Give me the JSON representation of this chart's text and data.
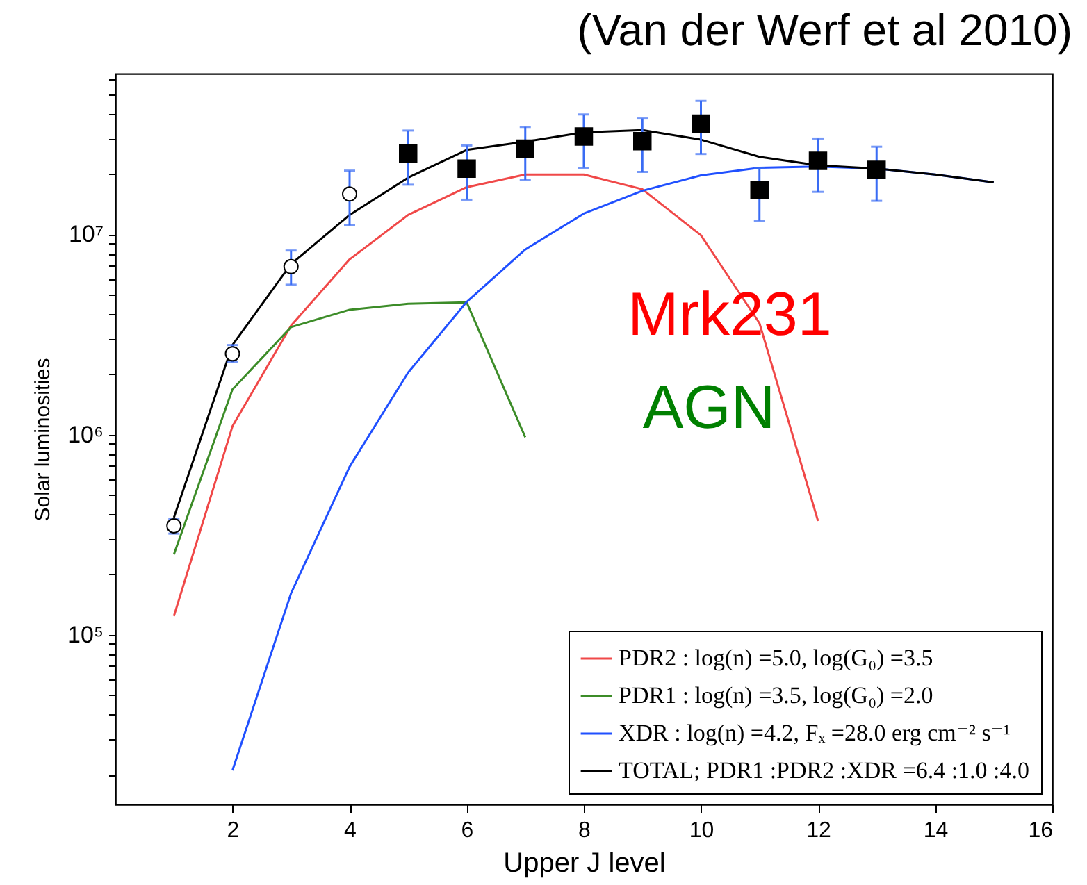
{
  "chart_data": {
    "type": "line",
    "title": "(Van der Werf et al 2010)",
    "xlabel": "Upper J level",
    "ylabel": "Solar luminosities",
    "annotations": [
      "Mrk231",
      "AGN"
    ],
    "x": [
      1,
      2,
      3,
      4,
      5,
      6,
      7,
      8,
      9,
      10,
      11,
      12,
      13,
      14,
      15
    ],
    "series": [
      {
        "name": "PDR2 : log(n) =5.0, log(G₀) =3.5",
        "color": "#f04848",
        "values": [
          124000,
          1100000,
          3500000,
          7500000,
          12500000,
          17200000,
          19900000,
          19900000,
          16800000,
          9900000,
          3600000,
          370000,
          null,
          null,
          null
        ]
      },
      {
        "name": "PDR1 : log(n) =3.5, log(G₀) =2.0",
        "color": "#3c8c28",
        "values": [
          252000,
          1680000,
          3440000,
          4200000,
          4500000,
          4570000,
          970000,
          null,
          null,
          null,
          null,
          null,
          null,
          null,
          null
        ]
      },
      {
        "name": "XDR : log(n) =4.2, Fₓ =28.0 erg cm⁻² s⁻¹",
        "color": "#2050ff",
        "values": [
          null,
          21000,
          161000,
          690000,
          2040000,
          4600000,
          8400000,
          12700000,
          16500000,
          19700000,
          21500000,
          21800000,
          21300000,
          19900000,
          18200000
        ]
      },
      {
        "name": "TOTAL; PDR1 :PDR2 :XDR =6.4 :1.0 :4.0",
        "color": "#000000",
        "values": [
          385000,
          2800000,
          7100000,
          12500000,
          19200000,
          26400000,
          29000000,
          32300000,
          33200000,
          29700000,
          24400000,
          22100000,
          21300000,
          19900000,
          18200000
        ]
      },
      {
        "type": "scatter",
        "marker": "circle",
        "color": "#000000",
        "x": [
          1,
          2,
          3,
          4
        ],
        "values": [
          350000,
          2530000,
          6900000,
          15900000
        ],
        "errors": [
          [
            320000,
            380000
          ],
          [
            2300000,
            2800000
          ],
          [
            5600000,
            8300000
          ],
          [
            11100000,
            20800000
          ]
        ]
      },
      {
        "type": "scatter",
        "marker": "square",
        "color": "#000000",
        "x": [
          5,
          6,
          7,
          8,
          9,
          10,
          11,
          12,
          13
        ],
        "values": [
          25300000,
          21300000,
          26800000,
          30800000,
          29200000,
          35700000,
          16700000,
          23300000,
          21000000
        ],
        "errors": [
          [
            17700000,
            33000000
          ],
          [
            14900000,
            27800000
          ],
          [
            18700000,
            34400000
          ],
          [
            21500000,
            39700000
          ],
          [
            20500000,
            37900000
          ],
          [
            25200000,
            46400000
          ],
          [
            11700000,
            21500000
          ],
          [
            16300000,
            30100000
          ],
          [
            14700000,
            27400000
          ]
        ]
      }
    ],
    "log": "y",
    "grid": false,
    "legend": "bottom right",
    "marker": "none",
    "line_style": "solid",
    "xlim": [
      0,
      16
    ],
    "xticks": [
      2,
      4,
      6,
      8,
      10,
      12,
      14,
      16
    ],
    "ylim": [
      14200,
      63500000
    ],
    "yticks": [
      {
        "value": 20000,
        "label": null
      },
      {
        "value": 30000,
        "label": null
      },
      {
        "value": 40000,
        "label": null
      },
      {
        "value": 50000,
        "label": null
      },
      {
        "value": 60000,
        "label": null
      },
      {
        "value": 70000,
        "label": null
      },
      {
        "value": 80000,
        "label": null
      },
      {
        "value": 90000,
        "label": null
      },
      {
        "value": 100000,
        "label": "10⁵"
      },
      {
        "value": 200000,
        "label": null
      },
      {
        "value": 300000,
        "label": null
      },
      {
        "value": 400000,
        "label": null
      },
      {
        "value": 500000,
        "label": null
      },
      {
        "value": 600000,
        "label": null
      },
      {
        "value": 700000,
        "label": null
      },
      {
        "value": 800000,
        "label": null
      },
      {
        "value": 900000,
        "label": null
      },
      {
        "value": 1000000,
        "label": "10⁶"
      },
      {
        "value": 2000000,
        "label": null
      },
      {
        "value": 3000000,
        "label": null
      },
      {
        "value": 4000000,
        "label": null
      },
      {
        "value": 5000000,
        "label": null
      },
      {
        "value": 6000000,
        "label": null
      },
      {
        "value": 7000000,
        "label": null
      },
      {
        "value": 8000000,
        "label": null
      },
      {
        "value": 9000000,
        "label": null
      },
      {
        "value": 10000000,
        "label": "10⁷"
      },
      {
        "value": 20000000,
        "label": null
      },
      {
        "value": 30000000,
        "label": null
      },
      {
        "value": 40000000,
        "label": null
      },
      {
        "value": 50000000,
        "label": null
      },
      {
        "value": 60000000,
        "label": null
      }
    ]
  }
}
